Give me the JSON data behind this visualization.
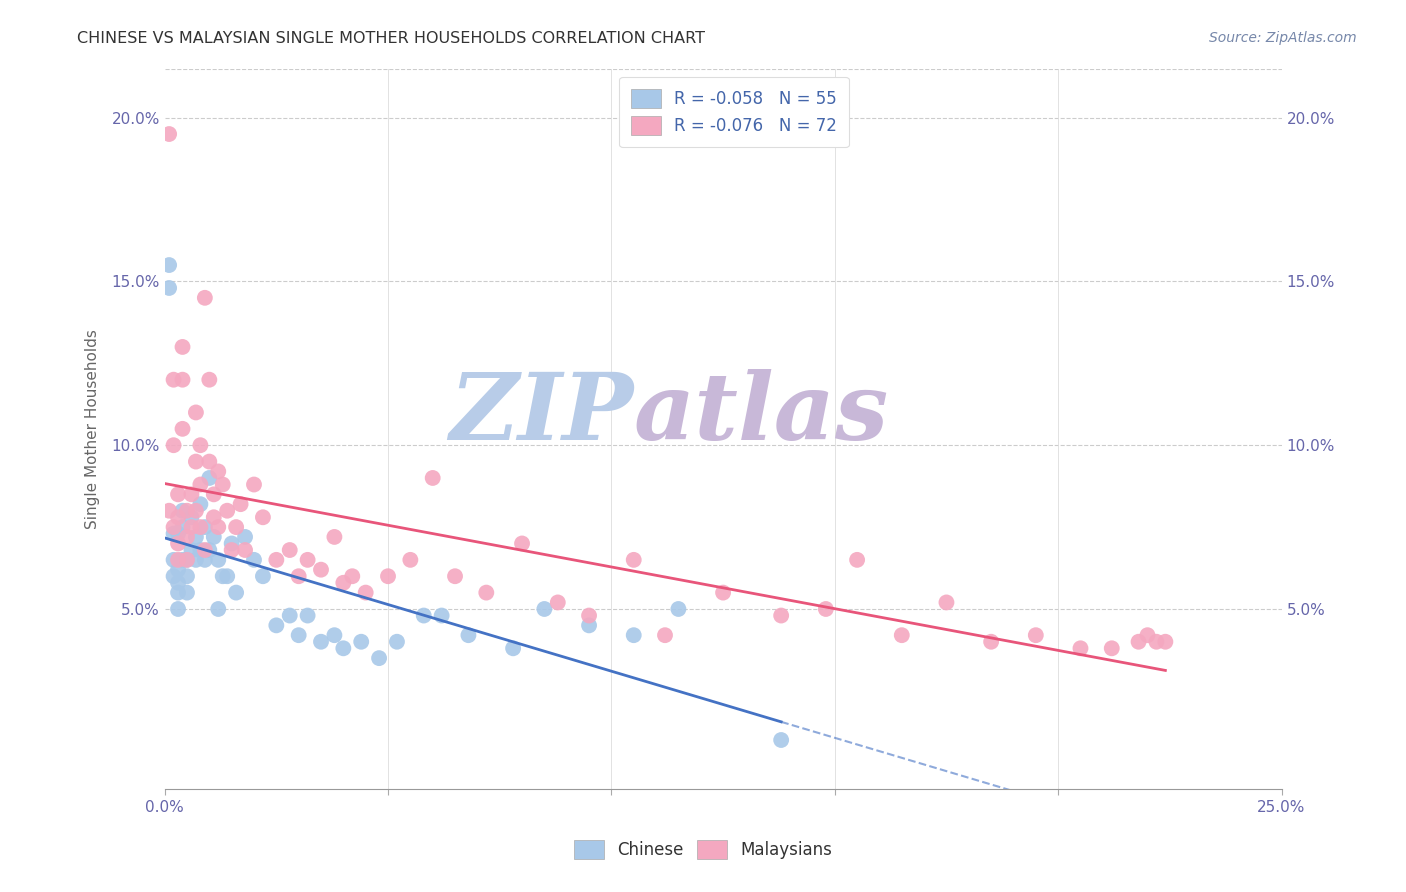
{
  "title": "CHINESE VS MALAYSIAN SINGLE MOTHER HOUSEHOLDS CORRELATION CHART",
  "source": "Source: ZipAtlas.com",
  "ylabel": "Single Mother Households",
  "chinese_color": "#a8c8e8",
  "malaysian_color": "#f4a8c0",
  "chinese_line_color": "#4472c4",
  "malaysian_line_color": "#e8557a",
  "watermark_zip_color": "#c8d8f0",
  "watermark_atlas_color": "#d8c8e8",
  "legend_line1": "R = -0.058   N = 55",
  "legend_line2": "R = -0.076   N = 72",
  "xlim": [
    0.0,
    0.25
  ],
  "ylim": [
    -0.005,
    0.215
  ],
  "chinese_x": [
    0.001,
    0.001,
    0.002,
    0.002,
    0.002,
    0.003,
    0.003,
    0.003,
    0.003,
    0.003,
    0.004,
    0.004,
    0.004,
    0.005,
    0.005,
    0.005,
    0.006,
    0.006,
    0.007,
    0.007,
    0.008,
    0.008,
    0.009,
    0.009,
    0.01,
    0.01,
    0.011,
    0.012,
    0.012,
    0.013,
    0.014,
    0.015,
    0.016,
    0.018,
    0.02,
    0.022,
    0.025,
    0.028,
    0.03,
    0.032,
    0.035,
    0.038,
    0.04,
    0.044,
    0.048,
    0.052,
    0.058,
    0.062,
    0.068,
    0.078,
    0.085,
    0.095,
    0.105,
    0.115,
    0.138
  ],
  "chinese_y": [
    0.155,
    0.148,
    0.073,
    0.065,
    0.06,
    0.073,
    0.062,
    0.058,
    0.055,
    0.05,
    0.08,
    0.075,
    0.065,
    0.065,
    0.06,
    0.055,
    0.078,
    0.068,
    0.072,
    0.065,
    0.082,
    0.068,
    0.075,
    0.065,
    0.09,
    0.068,
    0.072,
    0.065,
    0.05,
    0.06,
    0.06,
    0.07,
    0.055,
    0.072,
    0.065,
    0.06,
    0.045,
    0.048,
    0.042,
    0.048,
    0.04,
    0.042,
    0.038,
    0.04,
    0.035,
    0.04,
    0.048,
    0.048,
    0.042,
    0.038,
    0.05,
    0.045,
    0.042,
    0.05,
    0.01
  ],
  "malaysian_x": [
    0.001,
    0.001,
    0.002,
    0.002,
    0.002,
    0.003,
    0.003,
    0.003,
    0.003,
    0.004,
    0.004,
    0.004,
    0.005,
    0.005,
    0.005,
    0.006,
    0.006,
    0.007,
    0.007,
    0.007,
    0.008,
    0.008,
    0.008,
    0.009,
    0.009,
    0.01,
    0.01,
    0.011,
    0.011,
    0.012,
    0.012,
    0.013,
    0.014,
    0.015,
    0.016,
    0.017,
    0.018,
    0.02,
    0.022,
    0.025,
    0.028,
    0.03,
    0.032,
    0.035,
    0.038,
    0.04,
    0.042,
    0.045,
    0.05,
    0.055,
    0.06,
    0.065,
    0.072,
    0.08,
    0.088,
    0.095,
    0.105,
    0.112,
    0.125,
    0.138,
    0.148,
    0.155,
    0.165,
    0.175,
    0.185,
    0.195,
    0.205,
    0.212,
    0.218,
    0.22,
    0.222,
    0.224
  ],
  "malaysian_y": [
    0.08,
    0.195,
    0.12,
    0.1,
    0.075,
    0.085,
    0.078,
    0.07,
    0.065,
    0.13,
    0.12,
    0.105,
    0.08,
    0.072,
    0.065,
    0.085,
    0.075,
    0.11,
    0.095,
    0.08,
    0.1,
    0.088,
    0.075,
    0.145,
    0.068,
    0.12,
    0.095,
    0.085,
    0.078,
    0.092,
    0.075,
    0.088,
    0.08,
    0.068,
    0.075,
    0.082,
    0.068,
    0.088,
    0.078,
    0.065,
    0.068,
    0.06,
    0.065,
    0.062,
    0.072,
    0.058,
    0.06,
    0.055,
    0.06,
    0.065,
    0.09,
    0.06,
    0.055,
    0.07,
    0.052,
    0.048,
    0.065,
    0.042,
    0.055,
    0.048,
    0.05,
    0.065,
    0.042,
    0.052,
    0.04,
    0.042,
    0.038,
    0.038,
    0.04,
    0.042,
    0.04,
    0.04
  ]
}
